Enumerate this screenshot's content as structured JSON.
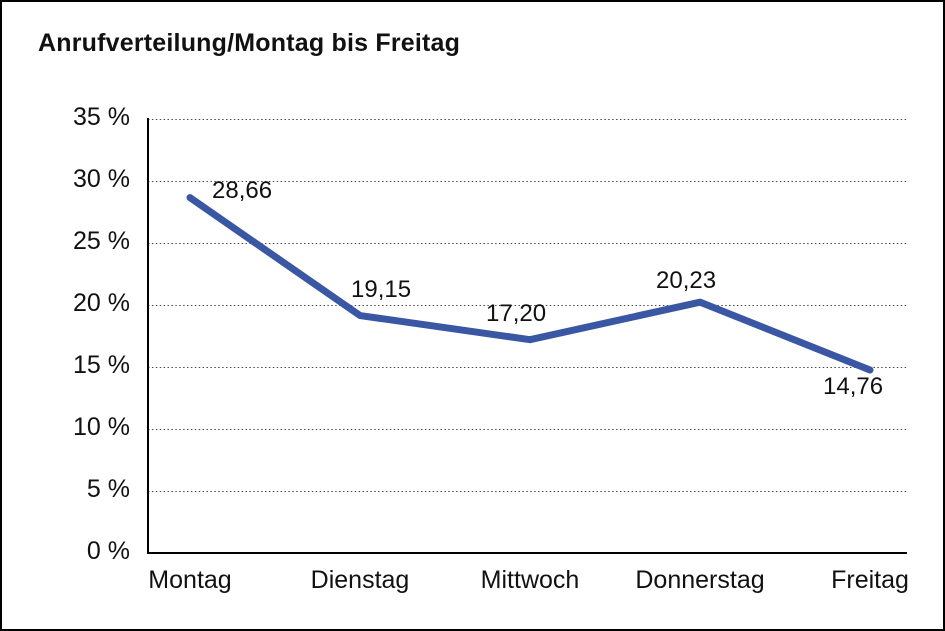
{
  "chart_data": {
    "type": "line",
    "title": "Anrufverteilung/Montag bis Freitag",
    "categories": [
      "Montag",
      "Dienstag",
      "Mittwoch",
      "Donnerstag",
      "Freitag"
    ],
    "values": [
      28.66,
      19.15,
      17.2,
      20.23,
      14.76
    ],
    "value_labels": [
      "28,66",
      "19,15",
      "17,20",
      "20,23",
      "14,76"
    ],
    "xlabel": "",
    "ylabel": "",
    "ylim": [
      0,
      35
    ],
    "ytick_step": 5,
    "ytick_labels": [
      "0 %",
      "5 %",
      "10 %",
      "15 %",
      "20 %",
      "25 %",
      "30 %",
      "35 %"
    ],
    "grid": "horizontal-dotted",
    "legend_position": "none",
    "colors": {
      "line": "#3A57A4",
      "axis": "#000000",
      "gridline": "#4a4a4a",
      "text": "#111111",
      "background": "#ffffff",
      "frame_border": "#000000"
    }
  }
}
